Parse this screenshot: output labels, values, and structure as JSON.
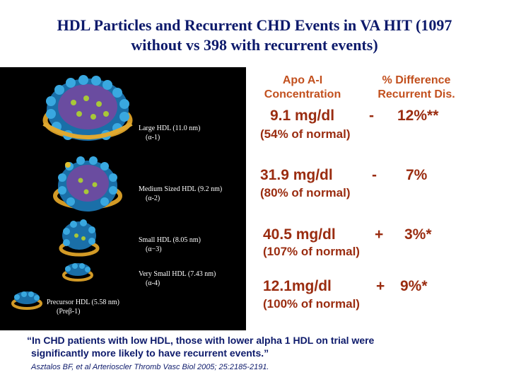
{
  "title": {
    "line1": "HDL Particles and Recurrent CHD Events in VA HIT (1097",
    "line2": "without vs 398 with recurrent events)"
  },
  "particles": [
    {
      "name": "Large HDL",
      "size": "(11.0 nm)",
      "sub": "(α-1)"
    },
    {
      "name": "Medium Sized HDL",
      "size": "(9.2 nm)",
      "sub": "(α-2)"
    },
    {
      "name": "Small HDL",
      "size": "(8.05 nm)",
      "sub": "(α−3)"
    },
    {
      "name": "Very Small HDL",
      "size": "(7.43 nm)",
      "sub": "(α-4)"
    },
    {
      "name": "Precursor HDL",
      "size": "(5.58 nm)",
      "sub": "(Preβ-1)"
    }
  ],
  "headers": {
    "apoa_line1": "Apo A-I",
    "apoa_line2": "Concentration",
    "diff_line1": "% Difference",
    "diff_line2": "Recurrent Dis."
  },
  "rows": [
    {
      "conc": "9.1 mg/dl",
      "sign": "-",
      "diff": "12%**",
      "pct": "(54% of normal)"
    },
    {
      "conc": "31.9 mg/dl",
      "sign": "-",
      "diff": "7%",
      "pct": "(80% of normal)"
    },
    {
      "conc": "40.5 mg/dl",
      "sign": "+",
      "diff": "3%*",
      "pct": "(107% of normal)"
    },
    {
      "conc": "12.1mg/dl",
      "sign": "+",
      "diff": "9%*",
      "pct": "(100% of normal)"
    }
  ],
  "quote": {
    "open": "“",
    "line1": "In CHD patients with low HDL, those with lower alpha 1 HDL on trial were",
    "line2": "significantly more likely to have recurrent events.",
    "close": "”"
  },
  "citation": "Asztalos BF, et al  Arterioscler Thromb Vasc Biol 2005; 25:2185-2191.",
  "colors": {
    "title": "#0d1a6b",
    "header": "#c2501e",
    "values": "#9a2c10",
    "panel": "#000000"
  }
}
